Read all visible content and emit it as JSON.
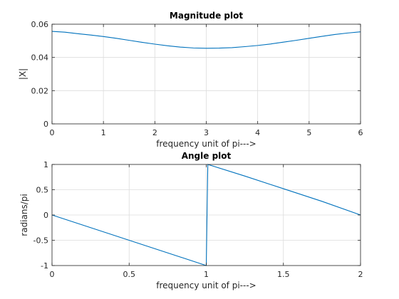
{
  "colors": {
    "series": "#0072BD",
    "axis": "#262626",
    "grid": "#dcdcdc",
    "background": "#ffffff"
  },
  "chart_data": [
    {
      "type": "line",
      "title": "Magnitude plot",
      "xlabel": "frequency unit of pi--->",
      "ylabel": "|X|",
      "xlim": [
        0,
        6
      ],
      "ylim": [
        0,
        0.06
      ],
      "grid": true,
      "xticks": [
        0,
        1,
        2,
        3,
        4,
        5,
        6
      ],
      "xtick_labels": [
        "0",
        "1",
        "2",
        "3",
        "4",
        "5",
        "6"
      ],
      "yticks": [
        0,
        0.02,
        0.04,
        0.06
      ],
      "ytick_labels": [
        "0",
        "0.02",
        "0.04",
        "0.06"
      ],
      "series": [
        {
          "x": [
            0,
            0.25,
            0.5,
            0.75,
            1,
            1.25,
            1.5,
            1.75,
            2,
            2.25,
            2.5,
            2.75,
            3,
            3.25,
            3.5,
            3.75,
            4,
            4.25,
            4.5,
            4.75,
            5,
            5.25,
            5.5,
            5.75,
            6
          ],
          "y": [
            0.0557,
            0.0552,
            0.0543,
            0.0535,
            0.0526,
            0.0515,
            0.0503,
            0.0491,
            0.048,
            0.047,
            0.0462,
            0.0457,
            0.0455,
            0.0456,
            0.0459,
            0.0465,
            0.0472,
            0.0481,
            0.0492,
            0.0503,
            0.0515,
            0.0527,
            0.0538,
            0.0547,
            0.0554
          ]
        }
      ]
    },
    {
      "type": "line",
      "title": "Angle plot",
      "xlabel": "frequency unit of pi--->",
      "ylabel": "radians/pi",
      "xlim": [
        0,
        2
      ],
      "ylim": [
        -1,
        1
      ],
      "grid": true,
      "xticks": [
        0,
        0.5,
        1,
        1.5,
        2
      ],
      "xtick_labels": [
        "0",
        "0.5",
        "1",
        "1.5",
        "2"
      ],
      "yticks": [
        -1,
        -0.5,
        0,
        0.5,
        1
      ],
      "ytick_labels": [
        "-1",
        "-0.5",
        "0",
        "0.5",
        "1"
      ],
      "series": [
        {
          "x": [
            0,
            0.25,
            0.5,
            0.75,
            1.0,
            1.01,
            1.25,
            1.5,
            1.75,
            2.0
          ],
          "y": [
            0,
            -0.25,
            -0.5,
            -0.75,
            -1.0,
            1.0,
            0.77,
            0.52,
            0.27,
            0.0
          ]
        }
      ]
    }
  ]
}
